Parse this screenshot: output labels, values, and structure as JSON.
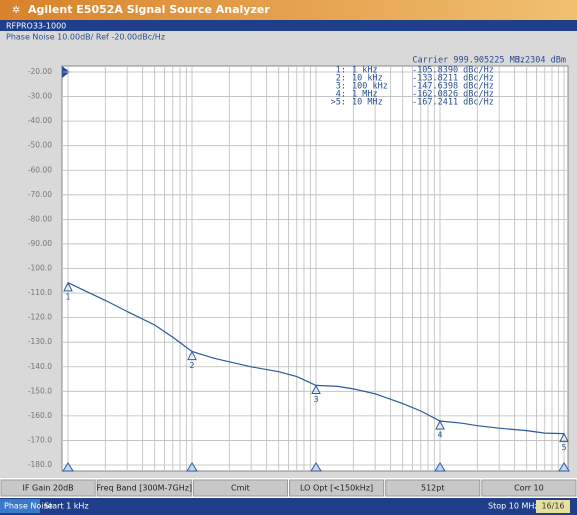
{
  "header": {
    "title": "Agilent E5052A Signal Source Analyzer",
    "device": "RFPRO33-1000",
    "trace_info": "Phase Noise 10.00dB/ Ref -20.00dBc/Hz"
  },
  "chart_data": {
    "type": "line",
    "carrier": "Carrier 999.905225 MHz",
    "carrier_power": "3.2304 dBm",
    "log_x": true,
    "grid": true,
    "xlim": [
      1000,
      10000000
    ],
    "xticks": [
      1000,
      2000,
      3000,
      4000,
      5000,
      6000,
      7000,
      8000,
      9000,
      10000,
      20000,
      30000,
      40000,
      50000,
      60000,
      70000,
      80000,
      90000,
      100000,
      200000,
      300000,
      400000,
      500000,
      600000,
      700000,
      800000,
      900000,
      1000000,
      2000000,
      3000000,
      4000000,
      5000000,
      6000000,
      7000000,
      8000000,
      9000000,
      10000000
    ],
    "ylim": [
      -180,
      -20
    ],
    "yticks": [
      {
        "value": -20,
        "label": "-20.00"
      },
      {
        "value": -30,
        "label": "-30.00"
      },
      {
        "value": -40,
        "label": "-40.00"
      },
      {
        "value": -50,
        "label": "-50.00"
      },
      {
        "value": -60,
        "label": "-60.00"
      },
      {
        "value": -70,
        "label": "-70.00"
      },
      {
        "value": -80,
        "label": "-80.00"
      },
      {
        "value": -90,
        "label": "-90.00"
      },
      {
        "value": -100,
        "label": "-100.0"
      },
      {
        "value": -110,
        "label": "-110.0"
      },
      {
        "value": -120,
        "label": "-120.0"
      },
      {
        "value": -130,
        "label": "-130.0"
      },
      {
        "value": -140,
        "label": "-140.0"
      },
      {
        "value": -150,
        "label": "-150.0"
      },
      {
        "value": -160,
        "label": "-160.0"
      },
      {
        "value": -170,
        "label": "-170.0"
      },
      {
        "value": -180,
        "label": "-180.0"
      }
    ],
    "x": [
      1000,
      1500,
      2000,
      3000,
      5000,
      7000,
      10000,
      15000,
      20000,
      30000,
      50000,
      70000,
      100000,
      150000,
      200000,
      300000,
      500000,
      700000,
      1000000,
      1500000,
      2000000,
      3000000,
      5000000,
      7000000,
      10000000
    ],
    "series": [
      {
        "color": "#2a5a9a",
        "values": [
          -105.8,
          -110,
          -113,
          -117.5,
          -123,
          -128,
          -133.8,
          -136.5,
          -138,
          -140,
          -142,
          -144,
          -147.6,
          -148,
          -149,
          -151,
          -155,
          -158,
          -162.1,
          -163,
          -164,
          -165,
          -166,
          -167,
          -167.2
        ]
      }
    ],
    "markers": [
      {
        "id": "1",
        "list_label": "1:",
        "x": 1000,
        "freq": "1 kHz",
        "value": -105.839,
        "value_label": "-105.8390 dBc/Hz"
      },
      {
        "id": "2",
        "list_label": "2:",
        "x": 10000,
        "freq": "10 kHz",
        "value": -133.8211,
        "value_label": "-133.8211 dBc/Hz"
      },
      {
        "id": "3",
        "list_label": "3:",
        "x": 100000,
        "freq": "100 kHz",
        "value": -147.6398,
        "value_label": "-147.6398 dBc/Hz"
      },
      {
        "id": "4",
        "list_label": "4:",
        "x": 1000000,
        "freq": "1 MHz",
        "value": -162.0826,
        "value_label": "-162.0826 dBc/Hz"
      },
      {
        "id": "5",
        "list_label": ">5:",
        "x": 10000000,
        "freq": "10 MHz",
        "value": -167.2411,
        "value_label": "-167.2411 dBc/Hz"
      }
    ]
  },
  "softkeys": [
    "IF Gain 20dB",
    "Freq Band [300M-7GHz]",
    "Cmit",
    "LO Opt [<150kHz]",
    "512pt",
    "Corr 10"
  ],
  "status": {
    "mode": "Phase Noise",
    "start": "Start 1 kHz",
    "stop": "Stop 10 MHz",
    "avg": "16/16"
  }
}
